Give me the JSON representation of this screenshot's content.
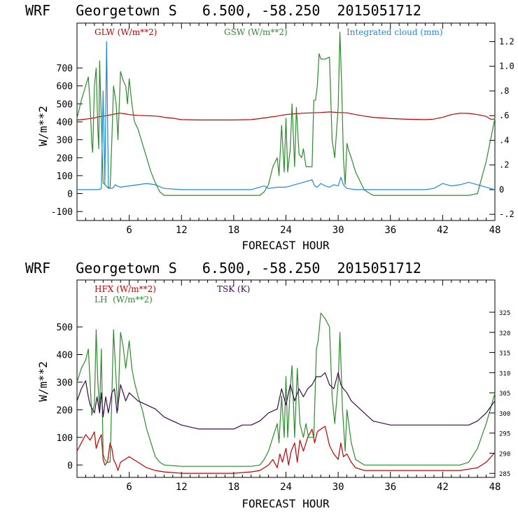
{
  "chart_data": [
    {
      "type": "line",
      "title": "WRF   Georgetown S   6.500, -58.250  2015051712",
      "xlabel": "FORECAST HOUR",
      "ylabel": "W/m**2",
      "xlim": [
        0,
        48
      ],
      "ylim": [
        -150,
        950
      ],
      "y2lim": [
        -0.25,
        1.35
      ],
      "x_ticks": [
        6,
        12,
        18,
        24,
        30,
        36,
        42,
        48
      ],
      "y_ticks": [
        -100,
        0,
        100,
        200,
        300,
        400,
        500,
        600,
        700
      ],
      "y2_ticks": [
        -0.2,
        0,
        0.2,
        0.4,
        0.6,
        0.8,
        1.0,
        1.2
      ],
      "y2_tick_labels": [
        "-.2",
        "0",
        ".2",
        ".4",
        ".6",
        ".8",
        "1.0",
        "1.2"
      ],
      "series": [
        {
          "name": "GLW (W/m**2)",
          "color": "#c00000",
          "axis": "left",
          "x": [
            0,
            0.5,
            1,
            1.5,
            2,
            2.5,
            3,
            3.5,
            4,
            4.5,
            5,
            5.5,
            6,
            6.5,
            7,
            7.5,
            8,
            8.5,
            9,
            9.5,
            10,
            11,
            12,
            14,
            16,
            18,
            20,
            21,
            22,
            23,
            24,
            25,
            26,
            27,
            28,
            29,
            30,
            31,
            32,
            33,
            34,
            36,
            38,
            40,
            41,
            42,
            43,
            44,
            45,
            46,
            47,
            47.5,
            48
          ],
          "values": [
            410,
            412,
            415,
            418,
            422,
            428,
            432,
            435,
            440,
            445,
            448,
            445,
            440,
            438,
            436,
            435,
            434,
            433,
            432,
            430,
            425,
            420,
            412,
            410,
            410,
            410,
            412,
            418,
            425,
            432,
            440,
            445,
            448,
            450,
            452,
            455,
            452,
            450,
            440,
            432,
            425,
            418,
            414,
            412,
            415,
            425,
            440,
            448,
            447,
            440,
            430,
            415,
            415
          ]
        },
        {
          "name": "GSW (W/m**2)",
          "color": "#2e8b2e",
          "axis": "left",
          "x": [
            0,
            0.5,
            1,
            1.3,
            1.5,
            1.7,
            1.8,
            2,
            2.2,
            2.4,
            2.5,
            2.6,
            2.8,
            3,
            3.2,
            3.4,
            3.6,
            3.8,
            4,
            4.2,
            4.5,
            4.7,
            5,
            5.3,
            5.6,
            5.8,
            6,
            6.3,
            6.6,
            7,
            7.5,
            8,
            8.5,
            9,
            9.5,
            10,
            11,
            12,
            14,
            16,
            18,
            20,
            21,
            21.5,
            22,
            22.5,
            23,
            23.2,
            23.5,
            23.8,
            24,
            24.2,
            24.5,
            24.7,
            25,
            25.2,
            25.5,
            25.8,
            26,
            26.3,
            26.6,
            27,
            27.2,
            27.4,
            27.6,
            27.8,
            28,
            28.5,
            29,
            29.3,
            29.6,
            30,
            30.2,
            30.4,
            30.6,
            30.8,
            31,
            31.2,
            31.5,
            32,
            33,
            34,
            36,
            40,
            44,
            45,
            46,
            47,
            48
          ],
          "values": [
            420,
            520,
            600,
            650,
            500,
            280,
            230,
            600,
            700,
            350,
            250,
            740,
            400,
            60,
            50,
            40,
            30,
            30,
            300,
            600,
            500,
            300,
            680,
            630,
            600,
            500,
            640,
            500,
            400,
            360,
            280,
            200,
            120,
            60,
            10,
            -10,
            -10,
            -10,
            -10,
            -10,
            -10,
            -10,
            -10,
            10,
            50,
            150,
            200,
            100,
            380,
            120,
            420,
            120,
            250,
            500,
            150,
            480,
            220,
            200,
            250,
            150,
            150,
            150,
            520,
            520,
            600,
            780,
            750,
            750,
            760,
            300,
            200,
            480,
            900,
            600,
            200,
            50,
            280,
            240,
            200,
            120,
            20,
            -10,
            -10,
            -10,
            -10,
            -10,
            0,
            180,
            420
          ]
        },
        {
          "name": "Integrated cloud (mm)",
          "color": "#1f8ad8",
          "axis": "right",
          "x": [
            0,
            1,
            2,
            2.5,
            2.8,
            3,
            3.2,
            3.4,
            3.6,
            3.8,
            4,
            4.2,
            4.4,
            4.6,
            5,
            6,
            7,
            8,
            9,
            10,
            12,
            16,
            20,
            21,
            21.5,
            22,
            23,
            24,
            25,
            26,
            27,
            27.3,
            27.6,
            28,
            28.5,
            29,
            29.5,
            30,
            30.3,
            30.6,
            31,
            32,
            36,
            40,
            41,
            42,
            43,
            44,
            45,
            46,
            47,
            48
          ],
          "values": [
            0,
            0,
            0,
            0,
            0.01,
            0.8,
            0.05,
            1.2,
            0.02,
            0.01,
            0.01,
            0.02,
            0.04,
            0.03,
            0.02,
            0.03,
            0.04,
            0.05,
            0.04,
            0.01,
            0,
            0,
            0,
            0.02,
            0.03,
            0.01,
            0.02,
            0.02,
            0.04,
            0.06,
            0.08,
            0.03,
            0.02,
            0.05,
            0.03,
            0.02,
            0.04,
            0.03,
            0.1,
            0.04,
            0.01,
            0,
            0,
            0,
            0.01,
            0.05,
            0.03,
            0.04,
            0.06,
            0.04,
            0.02,
            0
          ]
        }
      ]
    },
    {
      "type": "line",
      "title": "WRF   Georgetown S   6.500, -58.250  2015051712",
      "xlabel": "FORECAST HOUR",
      "ylabel": "W/m**2",
      "xlim": [
        0,
        48
      ],
      "ylim": [
        -45,
        670
      ],
      "y2lim": [
        284,
        333
      ],
      "x_ticks": [
        6,
        12,
        18,
        24,
        30,
        36,
        42,
        48
      ],
      "y_ticks": [
        0,
        100,
        200,
        300,
        400,
        500
      ],
      "y2_ticks": [
        285,
        290,
        295,
        300,
        305,
        310,
        315,
        320,
        325
      ],
      "y2_tick_labels": [
        "285",
        "290",
        "295",
        "300",
        "305",
        "310",
        "315",
        "320",
        "325"
      ],
      "series": [
        {
          "name": "HFX (W/m**2)",
          "color": "#c00000",
          "axis": "left",
          "x": [
            0,
            0.5,
            1,
            1.5,
            2,
            2.2,
            2.5,
            2.8,
            3,
            3.2,
            3.5,
            3.8,
            4,
            4.2,
            4.5,
            4.7,
            5,
            5.5,
            6,
            6.5,
            7,
            8,
            9,
            10,
            12,
            14,
            16,
            18,
            20,
            21,
            21.5,
            22,
            22.5,
            23,
            23.3,
            23.6,
            24,
            24.3,
            24.6,
            25,
            25.3,
            25.6,
            26,
            26.5,
            27,
            27.3,
            27.6,
            28,
            28.5,
            29,
            29.5,
            30,
            30.3,
            30.6,
            31,
            31.5,
            32,
            33,
            34,
            36,
            40,
            44,
            46,
            47,
            48
          ],
          "values": [
            50,
            80,
            110,
            90,
            120,
            60,
            90,
            110,
            20,
            0,
            10,
            80,
            60,
            20,
            0,
            -20,
            10,
            20,
            30,
            20,
            10,
            -10,
            -20,
            -25,
            -30,
            -30,
            -30,
            -30,
            -25,
            -20,
            -10,
            0,
            20,
            -10,
            40,
            10,
            60,
            0,
            50,
            80,
            10,
            90,
            50,
            100,
            130,
            80,
            120,
            130,
            140,
            70,
            40,
            20,
            80,
            30,
            40,
            10,
            -10,
            -20,
            -20,
            -20,
            -20,
            -20,
            -10,
            10,
            45
          ]
        },
        {
          "name": "LH  (W/m**2)",
          "color": "#2e8b2e",
          "axis": "left",
          "x": [
            0,
            0.5,
            1,
            1.3,
            1.5,
            1.7,
            2,
            2.2,
            2.4,
            2.6,
            2.8,
            3,
            3.2,
            3.4,
            3.6,
            3.8,
            4,
            4.2,
            4.5,
            4.7,
            5,
            5.3,
            5.6,
            6,
            6.3,
            6.6,
            7,
            7.5,
            8,
            8.5,
            9,
            9.5,
            10,
            12,
            16,
            20,
            21,
            21.5,
            22,
            22.5,
            23,
            23.2,
            23.5,
            23.8,
            24,
            24.2,
            24.5,
            24.7,
            25,
            25.3,
            25.6,
            26,
            26.3,
            26.6,
            27,
            27.2,
            27.5,
            27.7,
            28,
            28.5,
            29,
            29.3,
            29.6,
            30,
            30.2,
            30.5,
            30.8,
            31,
            31.5,
            32,
            33,
            34,
            36,
            40,
            44,
            45,
            46,
            47,
            48
          ],
          "values": [
            300,
            350,
            380,
            420,
            300,
            180,
            220,
            490,
            300,
            200,
            420,
            40,
            20,
            10,
            10,
            10,
            250,
            490,
            300,
            200,
            480,
            430,
            350,
            450,
            350,
            300,
            250,
            200,
            130,
            80,
            30,
            10,
            0,
            -5,
            -5,
            -5,
            0,
            20,
            50,
            100,
            150,
            80,
            250,
            100,
            320,
            100,
            280,
            360,
            100,
            350,
            150,
            100,
            150,
            100,
            100,
            100,
            420,
            450,
            550,
            530,
            500,
            250,
            150,
            300,
            480,
            200,
            50,
            200,
            80,
            20,
            0,
            0,
            0,
            0,
            0,
            10,
            60,
            150,
            260
          ]
        },
        {
          "name": "TSK (K)",
          "color": "#3a0a4a",
          "axis": "right",
          "x": [
            0,
            0.5,
            1,
            1.3,
            1.5,
            2,
            2.3,
            2.6,
            2.8,
            3,
            3.3,
            3.6,
            4,
            4.3,
            4.6,
            5,
            5.3,
            5.6,
            6,
            6.5,
            7,
            8,
            9,
            10,
            11,
            12,
            14,
            16,
            18,
            19,
            20,
            21,
            22,
            23,
            23.5,
            24,
            24.5,
            25,
            25.5,
            26,
            26.5,
            27,
            27.5,
            28,
            28.5,
            29,
            29.5,
            30,
            30.3,
            30.6,
            31,
            31.5,
            32,
            33,
            34,
            36,
            40,
            44,
            45,
            46,
            47,
            48
          ],
          "values": [
            303,
            306,
            308,
            304,
            302,
            300,
            304,
            300,
            305,
            299,
            304,
            300,
            305,
            306,
            300,
            307,
            305,
            303,
            305,
            304,
            303,
            302,
            301,
            299,
            298,
            297,
            296,
            296,
            296,
            297,
            297,
            298,
            300,
            301,
            306,
            302,
            307,
            303,
            306,
            304,
            306,
            307,
            309,
            309,
            310,
            307,
            306,
            310,
            307,
            306,
            305,
            303,
            302,
            300,
            298,
            297,
            297,
            297,
            297,
            298,
            300,
            303
          ]
        }
      ]
    }
  ]
}
